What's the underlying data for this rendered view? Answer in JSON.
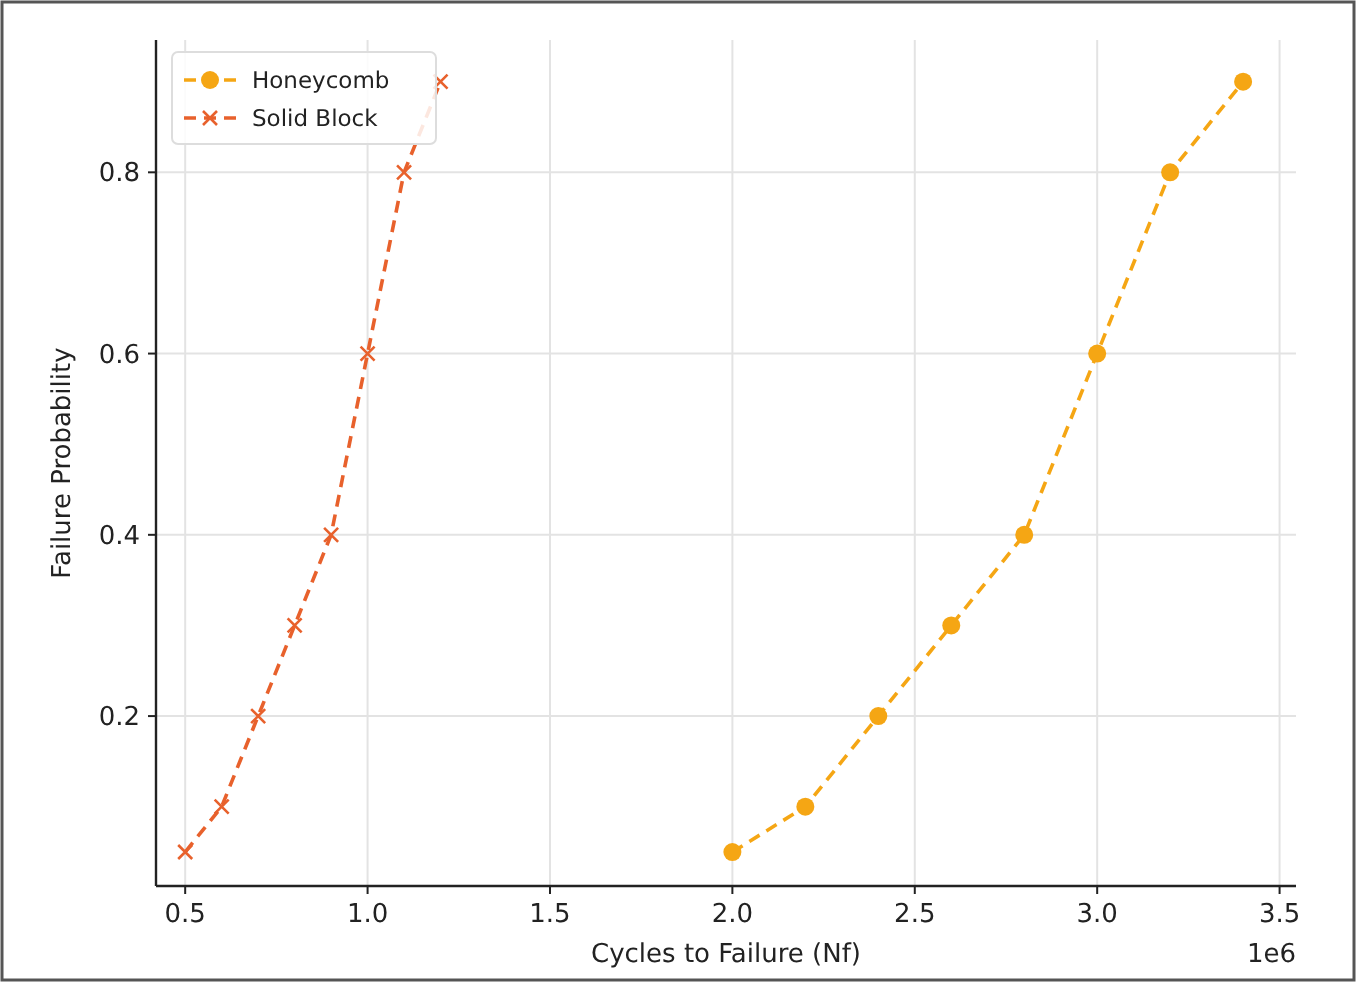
{
  "chart_data": {
    "type": "line",
    "xlabel": "Cycles to Failure (Nf)",
    "ylabel": "Failure Probability",
    "xlim": [
      0.42,
      3.545
    ],
    "ylim": [
      0.0125,
      0.946
    ],
    "xticks": [
      0.5,
      {
        "value": 1,
        "label": "1.0"
      },
      1.5,
      {
        "value": 2,
        "label": "2.0"
      },
      2.5,
      {
        "value": 3,
        "label": "3.0"
      },
      3.5
    ],
    "yticks": [
      0.2,
      0.4,
      0.6,
      0.8
    ],
    "grid": true,
    "legend": "top left",
    "line_style": "dashed",
    "annotations": [
      "1e6"
    ],
    "series": [
      {
        "name": "Honeycomb",
        "color": "#f5a614",
        "marker": "circle",
        "x": [
          2.0,
          2.2,
          2.4,
          2.6,
          2.8,
          3.0,
          3.2,
          3.4
        ],
        "values": [
          0.05,
          0.1,
          0.2,
          0.3,
          0.4,
          0.6,
          0.8,
          0.9
        ]
      },
      {
        "name": "Solid Block",
        "color": "#e8612c",
        "marker": "cross",
        "x": [
          0.5,
          0.6,
          0.7,
          0.8,
          0.9,
          1.0,
          1.1,
          1.2
        ],
        "values": [
          0.05,
          0.1,
          0.2,
          0.3,
          0.4,
          0.6,
          0.8,
          0.9
        ]
      }
    ]
  }
}
